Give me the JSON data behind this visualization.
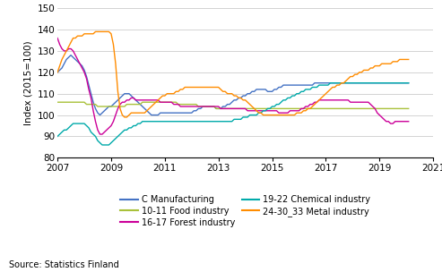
{
  "ylabel": "Index (2015=100)",
  "source": "Source: Statistics Finland",
  "xlim": [
    2007.0,
    2021.0
  ],
  "ylim": [
    80,
    150
  ],
  "yticks": [
    80,
    90,
    100,
    110,
    120,
    130,
    140,
    150
  ],
  "xticks": [
    2007,
    2009,
    2011,
    2013,
    2015,
    2017,
    2019,
    2021
  ],
  "series": {
    "C Manufacturing": {
      "color": "#4472C4",
      "data": [
        120,
        121,
        122,
        124,
        126,
        127,
        128,
        127,
        126,
        125,
        124,
        123,
        121,
        118,
        114,
        110,
        106,
        103,
        101,
        100,
        101,
        102,
        103,
        104,
        104,
        105,
        106,
        107,
        108,
        109,
        110,
        110,
        110,
        109,
        108,
        107,
        106,
        105,
        104,
        103,
        102,
        101,
        100,
        100,
        100,
        100,
        101,
        101,
        101,
        101,
        101,
        101,
        101,
        101,
        101,
        101,
        101,
        101,
        101,
        101,
        101,
        102,
        102,
        103,
        103,
        104,
        104,
        104,
        104,
        104,
        104,
        103,
        103,
        103,
        104,
        104,
        105,
        105,
        106,
        107,
        107,
        108,
        108,
        109,
        109,
        110,
        110,
        111,
        111,
        112,
        112,
        112,
        112,
        112,
        111,
        111,
        111,
        112,
        112,
        113,
        113,
        114,
        114,
        114,
        114,
        114,
        114,
        114,
        114,
        114,
        114,
        114,
        114,
        114,
        114,
        115,
        115,
        115,
        115,
        115,
        115,
        115,
        115,
        115,
        115,
        115,
        115,
        115,
        115,
        115,
        115,
        115,
        115,
        115,
        115,
        115,
        115,
        115,
        115,
        115,
        115,
        115,
        115,
        115,
        115,
        115,
        115,
        115,
        115,
        115,
        115,
        115,
        115,
        115,
        115,
        115,
        115,
        115
      ]
    },
    "10-11 Food industry": {
      "color": "#A9C13A",
      "data": [
        106,
        106,
        106,
        106,
        106,
        106,
        106,
        106,
        106,
        106,
        106,
        106,
        106,
        105,
        105,
        105,
        105,
        105,
        104,
        104,
        104,
        104,
        104,
        104,
        104,
        104,
        104,
        104,
        104,
        104,
        104,
        105,
        105,
        105,
        105,
        105,
        105,
        105,
        106,
        106,
        106,
        106,
        106,
        106,
        106,
        106,
        106,
        106,
        106,
        106,
        106,
        106,
        106,
        106,
        105,
        105,
        105,
        105,
        105,
        105,
        105,
        105,
        105,
        104,
        104,
        104,
        104,
        104,
        104,
        104,
        104,
        103,
        103,
        103,
        103,
        103,
        103,
        103,
        103,
        103,
        103,
        103,
        103,
        103,
        103,
        103,
        103,
        103,
        103,
        103,
        103,
        103,
        103,
        103,
        103,
        103,
        103,
        103,
        103,
        103,
        103,
        103,
        103,
        103,
        103,
        103,
        103,
        103,
        103,
        103,
        103,
        103,
        103,
        103,
        103,
        103,
        103,
        103,
        103,
        103,
        103,
        103,
        103,
        103,
        103,
        103,
        103,
        103,
        103,
        103,
        103,
        103,
        103,
        103,
        103,
        103,
        103,
        103,
        103,
        103,
        103,
        103,
        103,
        103,
        103,
        103,
        103,
        103,
        103,
        103,
        103,
        103,
        103,
        103,
        103,
        103,
        103,
        103
      ]
    },
    "16-17 Forest industry": {
      "color": "#CC0099",
      "data": [
        136,
        133,
        131,
        130,
        130,
        131,
        131,
        130,
        128,
        126,
        124,
        122,
        120,
        117,
        112,
        108,
        102,
        97,
        93,
        91,
        91,
        92,
        93,
        94,
        95,
        97,
        100,
        103,
        105,
        106,
        106,
        107,
        107,
        108,
        108,
        107,
        107,
        107,
        107,
        107,
        107,
        107,
        107,
        107,
        107,
        107,
        106,
        106,
        106,
        106,
        106,
        106,
        105,
        105,
        105,
        104,
        104,
        104,
        104,
        104,
        104,
        104,
        104,
        104,
        104,
        104,
        104,
        104,
        104,
        104,
        104,
        104,
        104,
        103,
        103,
        103,
        103,
        103,
        103,
        103,
        103,
        103,
        103,
        103,
        103,
        102,
        102,
        102,
        102,
        102,
        102,
        102,
        102,
        102,
        102,
        102,
        102,
        102,
        102,
        101,
        101,
        101,
        101,
        101,
        102,
        102,
        102,
        102,
        102,
        103,
        103,
        104,
        104,
        105,
        105,
        106,
        106,
        107,
        107,
        107,
        107,
        107,
        107,
        107,
        107,
        107,
        107,
        107,
        107,
        107,
        107,
        106,
        106,
        106,
        106,
        106,
        106,
        106,
        106,
        106,
        105,
        104,
        103,
        101,
        100,
        99,
        98,
        97,
        97,
        96,
        96,
        97,
        97,
        97,
        97,
        97,
        97,
        97
      ]
    },
    "19-22 Chemical industry": {
      "color": "#00AAAA",
      "data": [
        90,
        91,
        92,
        93,
        93,
        94,
        95,
        96,
        96,
        96,
        96,
        96,
        96,
        95,
        94,
        92,
        91,
        90,
        88,
        87,
        86,
        86,
        86,
        86,
        87,
        88,
        89,
        90,
        91,
        92,
        93,
        93,
        94,
        94,
        95,
        95,
        96,
        96,
        97,
        97,
        97,
        97,
        97,
        97,
        97,
        97,
        97,
        97,
        97,
        97,
        97,
        97,
        97,
        97,
        97,
        97,
        97,
        97,
        97,
        97,
        97,
        97,
        97,
        97,
        97,
        97,
        97,
        97,
        97,
        97,
        97,
        97,
        97,
        97,
        97,
        97,
        97,
        97,
        97,
        98,
        98,
        98,
        98,
        99,
        99,
        99,
        100,
        100,
        100,
        100,
        101,
        101,
        102,
        102,
        103,
        103,
        104,
        104,
        105,
        105,
        106,
        107,
        107,
        108,
        108,
        109,
        109,
        110,
        110,
        111,
        111,
        112,
        112,
        112,
        113,
        113,
        113,
        114,
        114,
        114,
        114,
        114,
        115,
        115,
        115,
        115,
        115,
        115,
        115,
        115,
        115,
        115,
        115,
        115,
        115,
        115,
        115,
        115,
        115,
        115,
        115,
        115,
        115,
        115,
        115,
        115,
        115,
        115,
        115,
        115,
        115,
        115,
        115,
        115,
        115,
        115,
        115,
        115
      ]
    },
    "24-30_33 Metal industry": {
      "color": "#FF8C00",
      "data": [
        120,
        123,
        126,
        128,
        130,
        132,
        134,
        136,
        136,
        137,
        137,
        137,
        138,
        138,
        138,
        138,
        138,
        139,
        139,
        139,
        139,
        139,
        139,
        139,
        138,
        133,
        124,
        111,
        103,
        100,
        99,
        99,
        100,
        101,
        101,
        101,
        101,
        101,
        101,
        101,
        102,
        103,
        104,
        105,
        106,
        107,
        108,
        109,
        109,
        110,
        110,
        110,
        110,
        111,
        111,
        112,
        112,
        113,
        113,
        113,
        113,
        113,
        113,
        113,
        113,
        113,
        113,
        113,
        113,
        113,
        113,
        113,
        113,
        112,
        111,
        111,
        110,
        110,
        110,
        109,
        109,
        108,
        108,
        107,
        107,
        106,
        105,
        104,
        103,
        102,
        101,
        101,
        100,
        100,
        100,
        100,
        100,
        100,
        100,
        100,
        100,
        100,
        100,
        100,
        100,
        100,
        100,
        101,
        101,
        101,
        102,
        102,
        103,
        103,
        104,
        105,
        106,
        107,
        108,
        109,
        110,
        111,
        112,
        113,
        113,
        114,
        114,
        115,
        115,
        116,
        117,
        118,
        118,
        119,
        119,
        120,
        120,
        121,
        121,
        121,
        122,
        122,
        123,
        123,
        123,
        124,
        124,
        124,
        124,
        124,
        125,
        125,
        125,
        126,
        126,
        126,
        126,
        126
      ]
    }
  },
  "legend_col1": [
    "C Manufacturing",
    "16-17 Forest industry",
    "24-30_33 Metal industry"
  ],
  "legend_col2": [
    "10-11 Food industry",
    "19-22 Chemical industry"
  ]
}
